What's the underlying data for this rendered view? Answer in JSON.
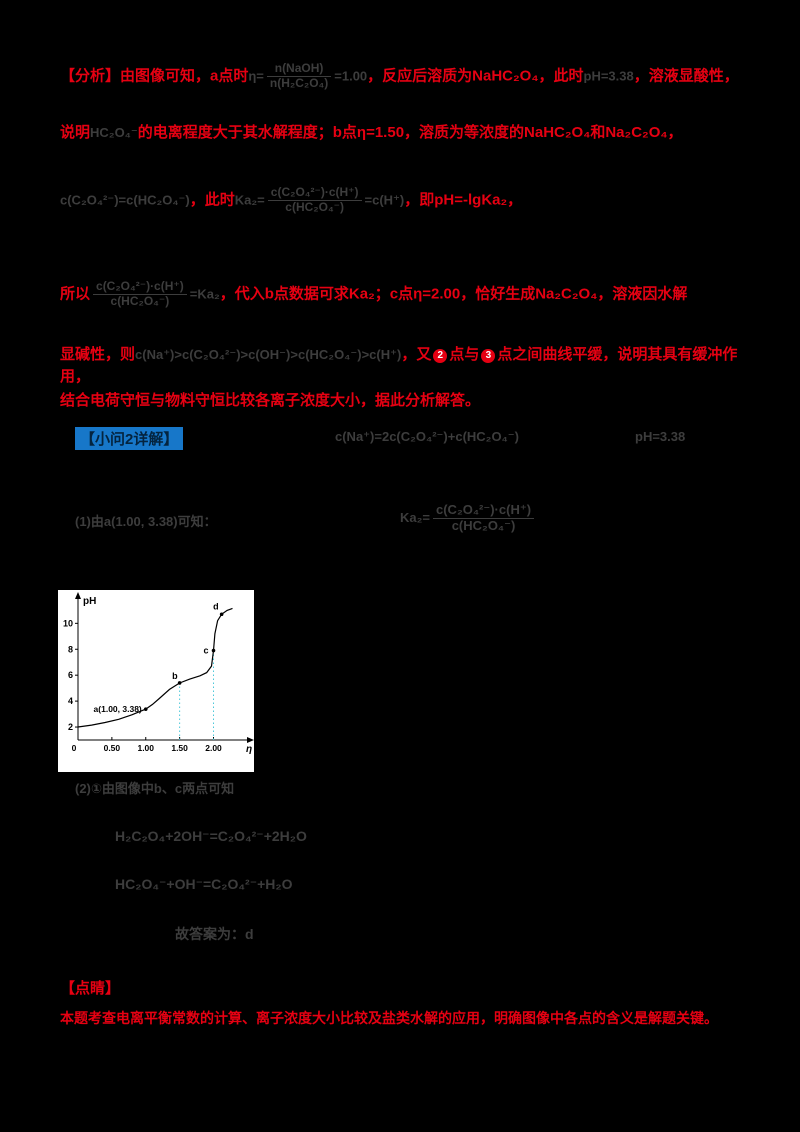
{
  "colors": {
    "text_red": "#e60012",
    "formula_dark": "#3d3d3d",
    "heading_blue_bg": "#1777c9",
    "chart_bg": "#ffffff",
    "guide_cyan": "#4cc8da"
  },
  "doc": {
    "line1": {
      "s1": "【分析】由图像可知，a点时",
      "f1pre": "η=",
      "f1num": "n(NaOH)",
      "f1den": "n(H₂C₂O₄)",
      "f1post": "=1.00",
      "s2": "，反应后溶质为NaHC₂O₄，此时",
      "f2": "pH=3.38",
      "s3": "，溶液显酸性，"
    },
    "line2": {
      "s1": "说明",
      "f1": "HC₂O₄⁻",
      "s2": "的电离程度大于其水解程度；b点η=1.50，溶质为等浓度的NaHC₂O₄和Na₂C₂O₄，"
    },
    "line3": {
      "f1": "c(C₂O₄²⁻)=c(HC₂O₄⁻)",
      "s1": "，此时",
      "f2pre": "Ka₂=",
      "f2num": "c(C₂O₄²⁻)·c(H⁺)",
      "f2den": "c(HC₂O₄⁻)",
      "f2post": "=c(H⁺)",
      "s2": "，即pH=-lgKa₂，"
    },
    "line4": {
      "s1": "所以",
      "f1num": "c(C₂O₄²⁻)·c(H⁺)",
      "f1den": "c(HC₂O₄⁻)",
      "f2": "=Ka₂",
      "s2": "，代入b点数据可求Ka₂；c点η=2.00，恰好生成Na₂C₂O₄，溶液因水解"
    },
    "line5": {
      "s1": "显碱性，则",
      "f1": "c(Na⁺)>c(C₂O₄²⁻)>c(OH⁻)>c(HC₂O₄⁻)>c(H⁺)",
      "s2": "，又",
      "c1": "2",
      "s3": "点与",
      "c2": "3",
      "s4": "点之间曲线平缓，说明其具有缓冲作用，"
    },
    "line6": {
      "s1": "结合电荷守恒与物料守恒比较各离子浓度大小，据此分析解答。"
    },
    "heading2": {
      "label": "【小问2详解】",
      "f1": "c(Na⁺)=2c(C₂O₄²⁻)+c(HC₂O₄⁻)",
      "f2": "pH=3.38"
    },
    "ka2row": {
      "left": "(1)由a(1.00, 3.38)可知：",
      "pre": "Ka₂=",
      "num": "c(C₂O₄²⁻)·c(H⁺)",
      "den": "c(HC₂O₄⁻)"
    },
    "chart_caption": "(2)①由图像中b、c两点可知",
    "eq1": "H₂C₂O₄+2OH⁻=C₂O₄²⁻+2H₂O",
    "eq2": "HC₂O₄⁻+OH⁻=C₂O₄²⁻+H₂O",
    "ans": "故答案为：d",
    "keynote": "【点睛】",
    "summary": "本题考查电离平衡常数的计算、离子浓度大小比较及盐类水解的应用，明确图像中各点的含义是解题关键。"
  },
  "chart_data": {
    "type": "line",
    "title": "",
    "xlabel": "η",
    "ylabel": "pH",
    "xlim": [
      0,
      2.45
    ],
    "ylim": [
      1,
      11.8
    ],
    "grid": false,
    "legend": "none",
    "xticks": [
      {
        "v": 0,
        "label": "0"
      },
      {
        "v": 0.5,
        "label": "0.50"
      },
      {
        "v": 1.0,
        "label": "1.00"
      },
      {
        "v": 1.5,
        "label": "1.50"
      },
      {
        "v": 2.0,
        "label": "2.00"
      }
    ],
    "yticks": [
      2,
      4,
      6,
      8,
      10
    ],
    "curve": [
      [
        0,
        2.0
      ],
      [
        0.2,
        2.15
      ],
      [
        0.4,
        2.35
      ],
      [
        0.6,
        2.6
      ],
      [
        0.8,
        2.95
      ],
      [
        1.0,
        3.38
      ],
      [
        1.1,
        3.75
      ],
      [
        1.2,
        4.2
      ],
      [
        1.35,
        4.9
      ],
      [
        1.5,
        5.4
      ],
      [
        1.65,
        5.7
      ],
      [
        1.8,
        5.95
      ],
      [
        1.9,
        6.2
      ],
      [
        1.97,
        6.7
      ],
      [
        2.0,
        7.9
      ],
      [
        2.02,
        9.2
      ],
      [
        2.06,
        10.2
      ],
      [
        2.12,
        10.7
      ],
      [
        2.2,
        11.0
      ],
      [
        2.28,
        11.15
      ]
    ],
    "points": [
      {
        "name": "a",
        "x": 1.0,
        "y": 3.38,
        "label": "a(1.00, 3.38)"
      },
      {
        "name": "b",
        "x": 1.5,
        "y": 5.4,
        "label": "b"
      },
      {
        "name": "c",
        "x": 2.0,
        "y": 7.9,
        "label": "c"
      },
      {
        "name": "d",
        "x": 2.12,
        "y": 10.7,
        "label": "d"
      }
    ],
    "guides": [
      {
        "x": 1.5,
        "y": 5.4
      },
      {
        "x": 2.0,
        "y": 7.9
      }
    ],
    "guide_color": "#4cc8da"
  }
}
